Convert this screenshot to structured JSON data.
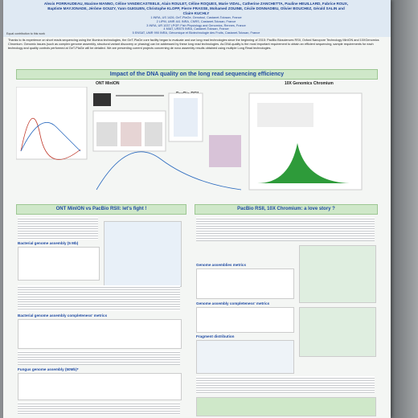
{
  "header": {
    "authors": "Alexis PORRAUDEAU, Maxime MANNO, Céline VANDECASTEELE, Alain ROULET, Céline ROQUES, Marie VIDAL, Catherine ZANCHETTA, Pauline HEUILLARD, Fabrice ROUX, Baptiste MAYJONADE, Jérôme GOUZY, Yann GUIGUEN, Christophe KLOPP, Pierre FRASSE, Mohamed ZOUINE, Cécile DONNADIEU, Olivier BOUCHEZ, Gérald SALIN and Claire KUCHLY",
    "affiliations": [
      "1 INRA, US 1426, GeT-PlaGe, Genotoul, Castanet-Tolosan, France",
      "2 LIPM, UMR 441 INRA, CNRS, Castanet-Tolosan, France",
      "3 INRA, UR 1037 LPGP, Fish Physiology and Genomics, Rennes, France",
      "4 MIAT, UR875 INRA, Castanet-Tolosan, France",
      "5 ENSAT, UMR 990 INRA, Génomique et Biotechnologie des Fruits, Castanet-Tolosan, France"
    ],
    "note": "Equal contribution to this work"
  },
  "intro": "Thanks to its experience on short reads sequencing using the Illumina technologies, the GeT-PlaGe core facility began to evaluate and use long read technologies since the beginning of 2015: PacBio Biosciences RSII, Oxford Nanopore Technology MinION and 10XGenomics Chromium. Genomic issues (such as complex genome assembly, structural variant discovery or phasing) can be addressed by these long read technologies. As DNA quality is the most important requirement to obtain an efficient sequencing, sample requirements for each technology and quality controls performed at GeT-PlaGe will be detailed. We are presenting current projects concerning de novo assembly results obtained using multiple Long Read technologies.",
  "top_section": {
    "title": "Impact of the DNA quality on the long read sequencing efficiency",
    "panels": [
      "ONT MinION",
      "PacBio RSII",
      "10X Genomics Chromium"
    ]
  },
  "left_section": {
    "title": "ONT MinION vs PacBio RSII: let's fight !",
    "subtitles": [
      "Bacterial genome assembly (5 Mb)",
      "Bacterial genome assembly completeness' metrics",
      "Fungus genome assembly (50Mb)*"
    ]
  },
  "right_section": {
    "title": "PacBio RSII, 10X Chromium: a love story ?",
    "subtitles": [
      "Genome assemblies metrics",
      "Genome assembly completeness' metrics",
      "Fragment distribution"
    ]
  }
}
